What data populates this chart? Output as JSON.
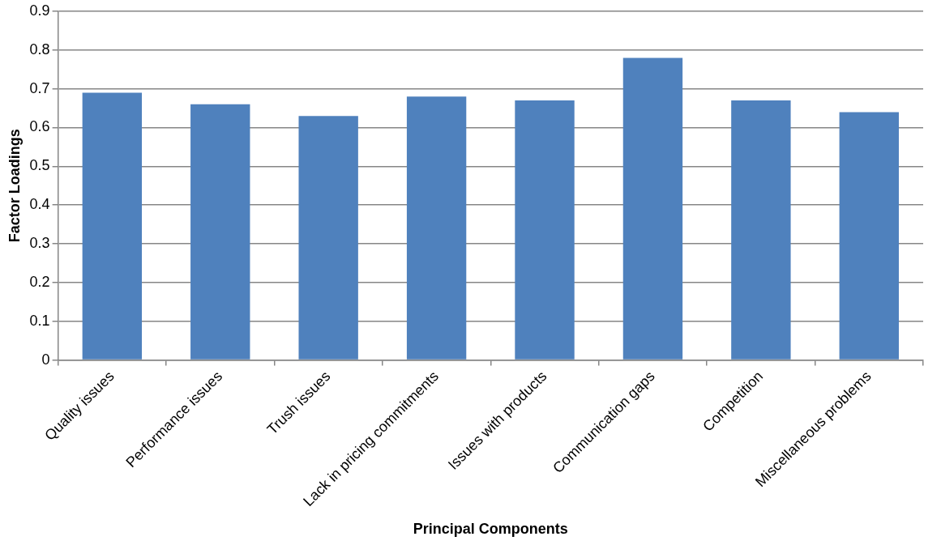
{
  "chart_data": {
    "type": "bar",
    "xlabel": "Principal Components",
    "ylabel": "Factor Loadings",
    "categories": [
      "Quality issues",
      "Performance issues",
      "Trush issues",
      "Lack in pricing commitments",
      "Issues with products",
      "Communication gaps",
      "Competition",
      "Miscellaneous problems"
    ],
    "values": [
      0.69,
      0.66,
      0.63,
      0.68,
      0.67,
      0.78,
      0.67,
      0.64
    ],
    "color": "#4f81bd",
    "ylim": [
      0,
      0.9
    ],
    "yticks": [
      0,
      0.1,
      0.2,
      0.3,
      0.4,
      0.5,
      0.6,
      0.7,
      0.8,
      0.9
    ],
    "grid": "y",
    "legend": false
  }
}
